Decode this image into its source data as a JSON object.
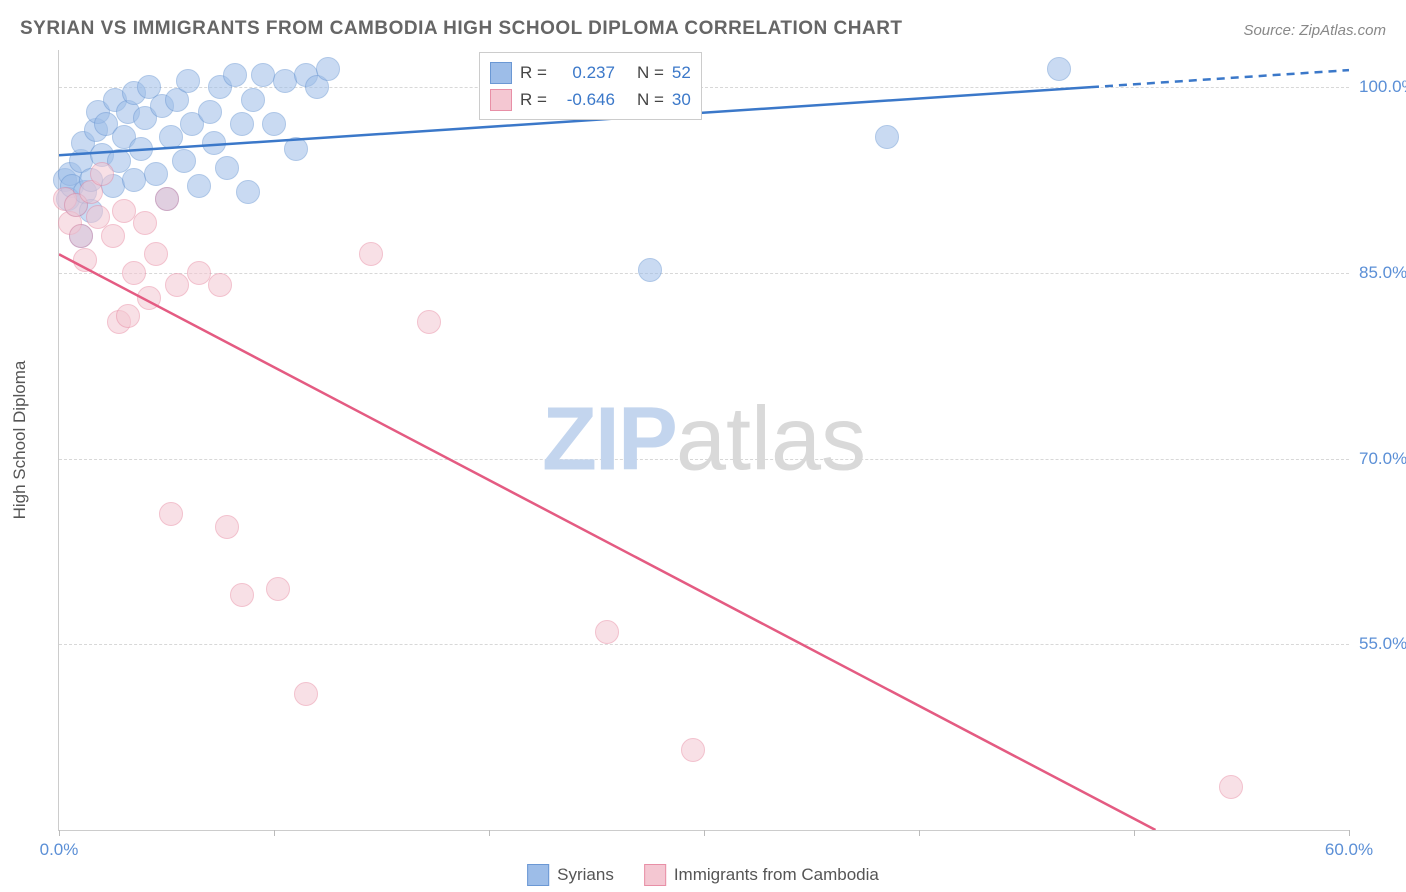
{
  "title": "SYRIAN VS IMMIGRANTS FROM CAMBODIA HIGH SCHOOL DIPLOMA CORRELATION CHART",
  "source": "Source: ZipAtlas.com",
  "ylabel": "High School Diploma",
  "watermark": {
    "a": "ZIP",
    "b": "atlas"
  },
  "chart": {
    "type": "scatter",
    "background_color": "#ffffff",
    "grid_color": "#d8d8d8",
    "grid_dash": "4,4",
    "axis_color": "#cccccc",
    "xlim": [
      0,
      60
    ],
    "ylim": [
      40,
      103
    ],
    "xtick_positions": [
      0,
      10,
      20,
      30,
      40,
      50,
      60
    ],
    "xtick_labels": [
      "0.0%",
      "",
      "",
      "",
      "",
      "",
      "60.0%"
    ],
    "ytick_positions": [
      55,
      70,
      85,
      100
    ],
    "ytick_labels": [
      "55.0%",
      "70.0%",
      "85.0%",
      "100.0%"
    ],
    "tick_fontsize": 17,
    "tick_color": "#5b8fd6",
    "label_fontsize": 17,
    "label_color": "#555555",
    "marker_radius": 11,
    "marker_opacity": 0.55,
    "series": [
      {
        "name": "Syrians",
        "fill": "#9dbde8",
        "stroke": "#6b98d4",
        "trend_color": "#3b78c9",
        "trend_width": 2.5,
        "trend": {
          "x1": 0,
          "y1": 94.5,
          "x2": 48,
          "y2": 100
        },
        "trend_dash_after_x": 48,
        "R": "0.237",
        "N": "52",
        "points": [
          [
            0.3,
            92.5
          ],
          [
            0.4,
            91
          ],
          [
            0.5,
            93
          ],
          [
            0.6,
            92
          ],
          [
            0.8,
            90.5
          ],
          [
            1.0,
            94
          ],
          [
            1.1,
            95.5
          ],
          [
            1.2,
            91.5
          ],
          [
            1.5,
            92.5
          ],
          [
            1.7,
            96.5
          ],
          [
            1.8,
            98
          ],
          [
            1.5,
            90
          ],
          [
            2.0,
            94.5
          ],
          [
            2.2,
            97
          ],
          [
            2.5,
            92
          ],
          [
            2.6,
            99
          ],
          [
            2.8,
            94
          ],
          [
            3.0,
            96
          ],
          [
            3.2,
            98
          ],
          [
            3.5,
            92.5
          ],
          [
            3.5,
            99.5
          ],
          [
            3.8,
            95
          ],
          [
            4.0,
            97.5
          ],
          [
            4.2,
            100
          ],
          [
            4.5,
            93
          ],
          [
            4.8,
            98.5
          ],
          [
            5.0,
            91
          ],
          [
            5.2,
            96
          ],
          [
            5.5,
            99
          ],
          [
            5.8,
            94
          ],
          [
            6.0,
            100.5
          ],
          [
            6.2,
            97
          ],
          [
            6.5,
            92
          ],
          [
            7.0,
            98
          ],
          [
            7.2,
            95.5
          ],
          [
            7.5,
            100
          ],
          [
            7.8,
            93.5
          ],
          [
            8.2,
            101
          ],
          [
            8.5,
            97
          ],
          [
            8.8,
            91.5
          ],
          [
            9.0,
            99
          ],
          [
            9.5,
            101
          ],
          [
            10.0,
            97
          ],
          [
            10.5,
            100.5
          ],
          [
            11.0,
            95
          ],
          [
            11.5,
            101
          ],
          [
            12.0,
            100
          ],
          [
            12.5,
            101.5
          ],
          [
            27.5,
            85.2
          ],
          [
            38.5,
            96
          ],
          [
            46.5,
            101.5
          ],
          [
            1.0,
            88
          ]
        ]
      },
      {
        "name": "Immigrants from Cambodia",
        "fill": "#f4c7d2",
        "stroke": "#e88fa6",
        "trend_color": "#e45b82",
        "trend_width": 2.5,
        "trend": {
          "x1": 0,
          "y1": 86.5,
          "x2": 51,
          "y2": 40
        },
        "R": "-0.646",
        "N": "30",
        "points": [
          [
            0.3,
            91
          ],
          [
            0.5,
            89
          ],
          [
            0.8,
            90.5
          ],
          [
            1.0,
            88
          ],
          [
            1.5,
            91.5
          ],
          [
            1.8,
            89.5
          ],
          [
            2.0,
            93
          ],
          [
            2.5,
            88
          ],
          [
            1.2,
            86
          ],
          [
            3.0,
            90
          ],
          [
            3.5,
            85
          ],
          [
            4.0,
            89
          ],
          [
            4.5,
            86.5
          ],
          [
            5.0,
            91
          ],
          [
            2.8,
            81
          ],
          [
            3.2,
            81.5
          ],
          [
            4.2,
            83
          ],
          [
            5.5,
            84
          ],
          [
            6.5,
            85
          ],
          [
            7.5,
            84
          ],
          [
            14.5,
            86.5
          ],
          [
            17.2,
            81
          ],
          [
            5.2,
            65.5
          ],
          [
            7.8,
            64.5
          ],
          [
            8.5,
            59
          ],
          [
            10.2,
            59.5
          ],
          [
            11.5,
            51
          ],
          [
            25.5,
            56
          ],
          [
            29.5,
            46.5
          ],
          [
            54.5,
            43.5
          ]
        ]
      }
    ]
  },
  "legend_stats": {
    "rows": [
      {
        "swatch_fill": "#9dbde8",
        "swatch_stroke": "#6b98d4",
        "r_label": "R =",
        "r_value": "0.237",
        "n_label": "N =",
        "n_value": "52"
      },
      {
        "swatch_fill": "#f4c7d2",
        "swatch_stroke": "#e88fa6",
        "r_label": "R =",
        "r_value": "-0.646",
        "n_label": "N =",
        "n_value": "30"
      }
    ]
  },
  "bottom_legend": {
    "items": [
      {
        "swatch_fill": "#9dbde8",
        "swatch_stroke": "#6b98d4",
        "label": "Syrians"
      },
      {
        "swatch_fill": "#f4c7d2",
        "swatch_stroke": "#e88fa6",
        "label": "Immigrants from Cambodia"
      }
    ]
  }
}
